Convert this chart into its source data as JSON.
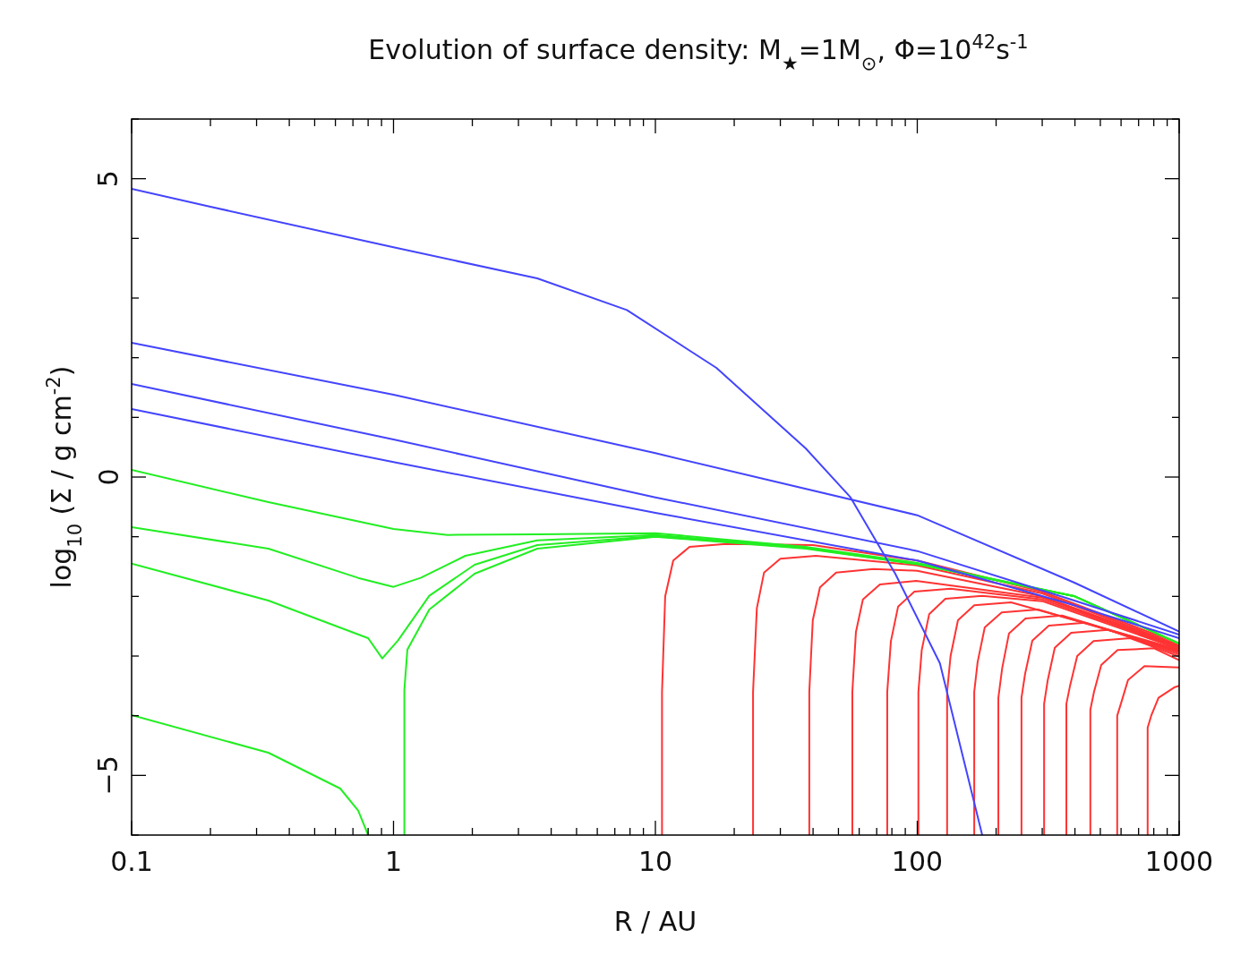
{
  "chart_data": {
    "type": "line",
    "title": "Evolution of surface density: M$_{★}$=1M$_{⊙}$, Φ=10$^{42}$s$^{-1}$",
    "xlabel": "R / AU",
    "ylabel": "log$_{10}$ (Σ / g cm$^{-2}$)",
    "log": "x",
    "xlim": [
      0.1,
      1000
    ],
    "ylim": [
      -6,
      6
    ],
    "xticks": [
      0.1,
      {
        "value": 0.2,
        "label": null
      },
      {
        "value": 0.3,
        "label": null
      },
      {
        "value": 0.4,
        "label": null
      },
      {
        "value": 0.5,
        "label": null
      },
      {
        "value": 0.6,
        "label": null
      },
      {
        "value": 0.7,
        "label": null
      },
      {
        "value": 0.8,
        "label": null
      },
      {
        "value": 0.9,
        "label": null
      },
      1,
      {
        "value": 2,
        "label": null
      },
      {
        "value": 3,
        "label": null
      },
      {
        "value": 4,
        "label": null
      },
      {
        "value": 5,
        "label": null
      },
      {
        "value": 6,
        "label": null
      },
      {
        "value": 7,
        "label": null
      },
      {
        "value": 8,
        "label": null
      },
      {
        "value": 9,
        "label": null
      },
      10,
      {
        "value": 20,
        "label": null
      },
      {
        "value": 30,
        "label": null
      },
      {
        "value": 40,
        "label": null
      },
      {
        "value": 50,
        "label": null
      },
      {
        "value": 60,
        "label": null
      },
      {
        "value": 70,
        "label": null
      },
      {
        "value": 80,
        "label": null
      },
      {
        "value": 90,
        "label": null
      },
      100,
      {
        "value": 200,
        "label": null
      },
      {
        "value": 300,
        "label": null
      },
      {
        "value": 400,
        "label": null
      },
      {
        "value": 500,
        "label": null
      },
      {
        "value": 600,
        "label": null
      },
      {
        "value": 700,
        "label": null
      },
      {
        "value": 800,
        "label": null
      },
      {
        "value": 900,
        "label": null
      },
      1000
    ],
    "yticks": [
      {
        "value": -6,
        "label": null
      },
      -5,
      {
        "value": -4,
        "label": null
      },
      {
        "value": -3,
        "label": null
      },
      {
        "value": -2,
        "label": null
      },
      {
        "value": -1,
        "label": null
      },
      0,
      {
        "value": 1,
        "label": null
      },
      {
        "value": 2,
        "label": null
      },
      {
        "value": 3,
        "label": null
      },
      {
        "value": 4,
        "label": null
      },
      5,
      {
        "value": 6,
        "label": null
      }
    ],
    "series": [
      {
        "color": "#4444ff",
        "x": [
          0.1,
          0.2,
          1,
          3.54,
          7.78,
          17.1,
          37.5,
          55.6,
          82.4,
          122,
          177
        ],
        "values": [
          4.83,
          4.53,
          3.85,
          3.33,
          2.8,
          1.83,
          0.48,
          -0.34,
          -1.62,
          -3.12,
          -6.0
        ]
      },
      {
        "color": "#4444ff",
        "x": [
          0.1,
          1,
          10,
          100,
          398,
          1000
        ],
        "values": [
          2.25,
          1.38,
          0.4,
          -0.64,
          -1.77,
          -2.59
        ]
      },
      {
        "color": "#4444ff",
        "x": [
          0.1,
          1,
          10,
          100,
          398,
          1000
        ],
        "values": [
          1.56,
          0.63,
          -0.34,
          -1.24,
          -2.07,
          -2.64
        ]
      },
      {
        "color": "#4444ff",
        "x": [
          0.1,
          1,
          10,
          100,
          398,
          1000
        ],
        "values": [
          1.14,
          0.25,
          -0.6,
          -1.4,
          -2.15,
          -2.7
        ]
      },
      {
        "color": "#22ee22",
        "x": [
          0.1,
          0.333,
          1,
          1.61,
          3.54,
          10,
          37.5,
          100,
          400,
          1000
        ],
        "values": [
          0.12,
          -0.42,
          -0.87,
          -0.97,
          -0.96,
          -0.94,
          -1.17,
          -1.44,
          -2.0,
          -2.79
        ]
      },
      {
        "color": "#22ee22",
        "x": [
          0.1,
          0.333,
          0.733,
          1,
          1.27,
          1.88,
          3.54,
          10,
          37.5,
          100,
          400,
          1000
        ],
        "values": [
          -0.84,
          -1.2,
          -1.69,
          -1.84,
          -1.69,
          -1.32,
          -1.06,
          -0.97,
          -1.18,
          -1.45,
          -2.0,
          -2.79
        ]
      },
      {
        "color": "#22ee22",
        "x": [
          0.1,
          0.333,
          0.8,
          0.906,
          1.04,
          1.37,
          2.04,
          3.54,
          10,
          37.5,
          100,
          400,
          1000
        ],
        "values": [
          -1.45,
          -2.07,
          -2.7,
          -3.04,
          -2.74,
          -1.99,
          -1.47,
          -1.14,
          -0.99,
          -1.19,
          -1.46,
          -2.0,
          -2.79
        ]
      },
      {
        "color": "#22ee22",
        "x": [
          1.1,
          1.1,
          1.13,
          1.37,
          2.04,
          3.54,
          10,
          37.5,
          100,
          400,
          1000
        ],
        "values": [
          -6.0,
          -3.57,
          -2.89,
          -2.22,
          -1.62,
          -1.2,
          -1.0,
          -1.2,
          -1.46,
          -2.0,
          -2.79
        ]
      },
      {
        "color": "#22ee22",
        "x": [
          0.1,
          0.333,
          0.626,
          0.733,
          0.8
        ],
        "values": [
          -3.99,
          -4.62,
          -5.22,
          -5.59,
          -6.0
        ]
      },
      {
        "color": "#ff3333",
        "x": [
          10.6,
          10.6,
          10.9,
          11.7,
          13.5,
          18.6,
          40,
          100,
          300,
          1000
        ],
        "values": [
          -6.0,
          -3.6,
          -2.0,
          -1.4,
          -1.17,
          -1.12,
          -1.14,
          -1.4,
          -1.92,
          -2.79
        ]
      },
      {
        "color": "#ff3333",
        "x": [
          23.6,
          23.6,
          24.4,
          26,
          30,
          41,
          100,
          300,
          1000
        ],
        "values": [
          -6.0,
          -3.6,
          -2.2,
          -1.6,
          -1.37,
          -1.32,
          -1.48,
          -1.95,
          -2.82
        ]
      },
      {
        "color": "#ff3333",
        "x": [
          38.7,
          38.7,
          39.9,
          42.5,
          49,
          68,
          100,
          300,
          1000
        ],
        "values": [
          -6.0,
          -3.6,
          -2.4,
          -1.85,
          -1.6,
          -1.54,
          -1.57,
          -2.0,
          -2.83
        ]
      },
      {
        "color": "#ff3333",
        "x": [
          56.5,
          56.5,
          58.3,
          62,
          72,
          99,
          300,
          1000
        ],
        "values": [
          -6.0,
          -3.6,
          -2.6,
          -2.05,
          -1.8,
          -1.74,
          -2.02,
          -2.85
        ]
      },
      {
        "color": "#ff3333",
        "x": [
          76.8,
          76.8,
          79.3,
          84.5,
          97.5,
          134,
          300,
          1000
        ],
        "values": [
          -6.0,
          -3.6,
          -2.75,
          -2.17,
          -1.92,
          -1.87,
          -2.05,
          -2.86
        ]
      },
      {
        "color": "#ff3333",
        "x": [
          101,
          101,
          104,
          111,
          128,
          177,
          300,
          1000
        ],
        "values": [
          -6.0,
          -3.6,
          -2.9,
          -2.3,
          -2.04,
          -1.99,
          -2.08,
          -2.88
        ]
      },
      {
        "color": "#ff3333",
        "x": [
          130,
          130,
          134,
          143,
          165,
          228,
          1000
        ],
        "values": [
          -6.0,
          -3.6,
          -3.0,
          -2.4,
          -2.15,
          -2.1,
          -2.89
        ]
      },
      {
        "color": "#ff3333",
        "x": [
          165,
          165,
          170,
          181,
          210,
          289,
          1000
        ],
        "values": [
          -6.0,
          -3.6,
          -3.1,
          -2.52,
          -2.27,
          -2.22,
          -2.91
        ]
      },
      {
        "color": "#ff3333",
        "x": [
          204,
          204,
          211,
          224,
          259,
          357,
          1000
        ],
        "values": [
          -6.0,
          -3.7,
          -3.2,
          -2.62,
          -2.37,
          -2.32,
          -2.92
        ]
      },
      {
        "color": "#ff3333",
        "x": [
          250,
          250,
          258,
          275,
          318,
          438,
          1000
        ],
        "values": [
          -6.0,
          -3.7,
          -3.3,
          -2.74,
          -2.49,
          -2.44,
          -2.94
        ]
      },
      {
        "color": "#ff3333",
        "x": [
          305,
          305,
          315,
          335,
          387,
          534,
          1000
        ],
        "values": [
          -6.0,
          -3.8,
          -3.4,
          -2.86,
          -2.61,
          -2.56,
          -2.97
        ]
      },
      {
        "color": "#ff3333",
        "x": [
          371,
          371,
          383,
          408,
          471,
          650,
          1000
        ],
        "values": [
          -6.0,
          -3.8,
          -3.5,
          -3.0,
          -2.75,
          -2.7,
          -3.01
        ]
      },
      {
        "color": "#ff3333",
        "x": [
          458,
          458,
          473,
          504,
          582,
          802,
          1000
        ],
        "values": [
          -6.0,
          -3.9,
          -3.6,
          -3.15,
          -2.9,
          -2.87,
          -3.07
        ]
      },
      {
        "color": "#ff3333",
        "x": [
          580,
          580,
          599,
          638,
          737,
          1000
        ],
        "values": [
          -6.0,
          -4.0,
          -3.8,
          -3.4,
          -3.17,
          -3.19
        ]
      },
      {
        "color": "#ff3333",
        "x": [
          758,
          758,
          782,
          834,
          963,
          1000
        ],
        "values": [
          -6.0,
          -4.2,
          -4.0,
          -3.7,
          -3.52,
          -3.5
        ]
      }
    ]
  }
}
